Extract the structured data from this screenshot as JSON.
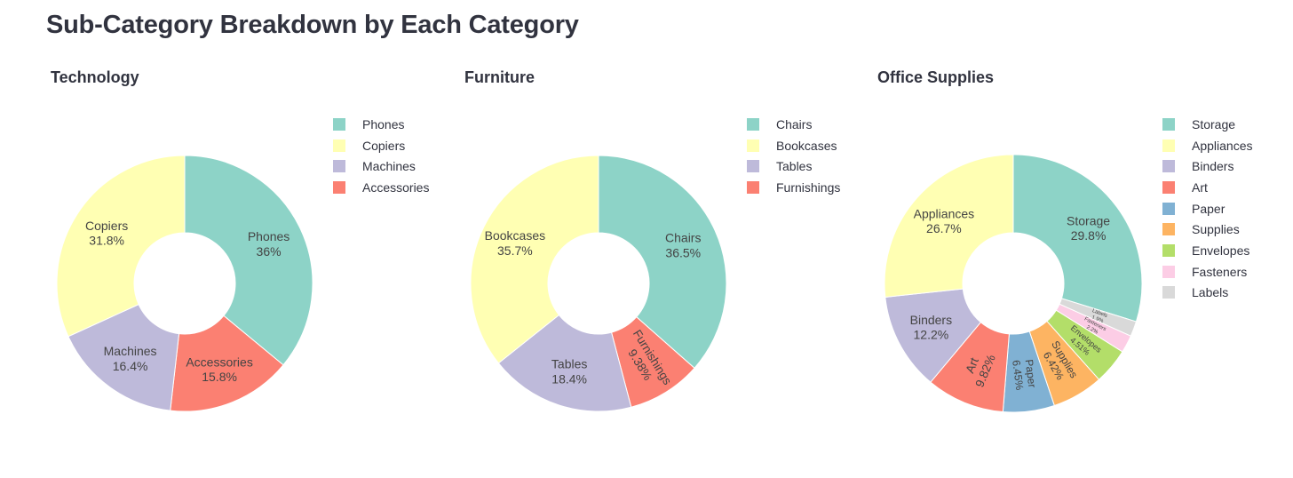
{
  "page": {
    "title": "Sub-Category Breakdown by Each Category"
  },
  "chart_data": [
    {
      "type": "pie",
      "title": "Technology",
      "donut": true,
      "legend_position": "right",
      "categories": [
        "Phones",
        "Copiers",
        "Machines",
        "Accessories"
      ],
      "values": [
        36.0,
        31.8,
        16.4,
        15.8
      ],
      "labels": [
        "36%",
        "31.8%",
        "16.4%",
        "15.8%"
      ],
      "colors": [
        "#8dd3c7",
        "#ffffb3",
        "#bebada",
        "#fb8072"
      ],
      "slice_order": [
        "Phones",
        "Accessories",
        "Machines",
        "Copiers"
      ]
    },
    {
      "type": "pie",
      "title": "Furniture",
      "donut": true,
      "legend_position": "right",
      "categories": [
        "Chairs",
        "Bookcases",
        "Tables",
        "Furnishings"
      ],
      "values": [
        36.5,
        35.7,
        18.4,
        9.38
      ],
      "labels": [
        "36.5%",
        "35.7%",
        "18.4%",
        "9.38%"
      ],
      "colors": [
        "#8dd3c7",
        "#ffffb3",
        "#bebada",
        "#fb8072"
      ],
      "slice_order": [
        "Chairs",
        "Furnishings",
        "Tables",
        "Bookcases"
      ]
    },
    {
      "type": "pie",
      "title": "Office Supplies",
      "donut": true,
      "legend_position": "right",
      "categories": [
        "Storage",
        "Appliances",
        "Binders",
        "Art",
        "Paper",
        "Supplies",
        "Envelopes",
        "Fasteners",
        "Labels"
      ],
      "values": [
        29.8,
        26.7,
        12.2,
        9.82,
        6.45,
        6.42,
        4.51,
        2.2,
        1.9
      ],
      "labels": [
        "29.8%",
        "26.7%",
        "12.2%",
        "9.82%",
        "6.45%",
        "6.42%",
        "4.51%",
        "2.2%",
        "1.9%"
      ],
      "colors": [
        "#8dd3c7",
        "#ffffb3",
        "#bebada",
        "#fb8072",
        "#80b1d3",
        "#fdb462",
        "#b3de69",
        "#fccde5",
        "#d9d9d9"
      ],
      "slice_order": [
        "Storage",
        "Labels",
        "Fasteners",
        "Envelopes",
        "Supplies",
        "Paper",
        "Art",
        "Binders",
        "Appliances"
      ]
    }
  ]
}
